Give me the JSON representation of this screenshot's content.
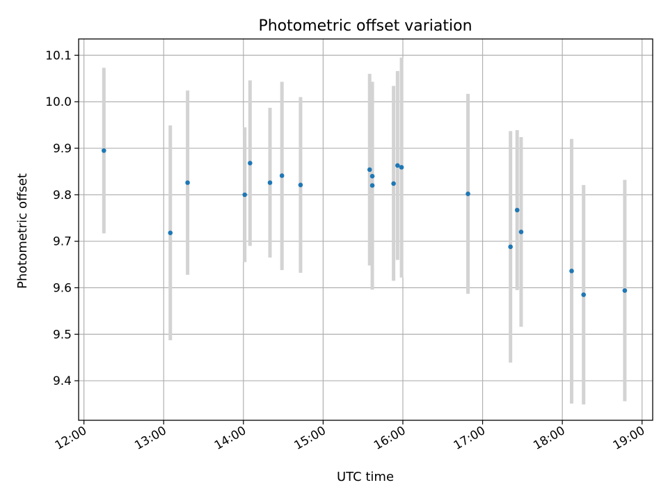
{
  "chart_data": {
    "type": "scatter",
    "title": "Photometric offset variation",
    "xlabel": "UTC time",
    "ylabel": "Photometric offset",
    "x_axis_type": "time",
    "xlim": [
      "11:56",
      "19:08"
    ],
    "ylim": [
      9.315,
      10.135
    ],
    "x_ticks": [
      "12:00",
      "13:00",
      "14:00",
      "15:00",
      "16:00",
      "17:00",
      "18:00",
      "19:00"
    ],
    "y_ticks": [
      9.4,
      9.5,
      9.6,
      9.7,
      9.8,
      9.9,
      10.0,
      10.1
    ],
    "y_tick_labels": [
      "9.4",
      "9.5",
      "9.6",
      "9.7",
      "9.8",
      "9.9",
      "10.0",
      "10.1"
    ],
    "grid": true,
    "point_color": "#1f77b4",
    "errorbar_color": "#d3d3d3",
    "points": [
      {
        "time": "12:15",
        "y": 9.895,
        "y_low": 9.717,
        "y_high": 10.073
      },
      {
        "time": "13:05",
        "y": 9.718,
        "y_low": 9.487,
        "y_high": 9.949
      },
      {
        "time": "13:18",
        "y": 9.826,
        "y_low": 9.628,
        "y_high": 10.024
      },
      {
        "time": "14:01",
        "y": 9.8,
        "y_low": 9.655,
        "y_high": 9.945
      },
      {
        "time": "14:05",
        "y": 9.868,
        "y_low": 9.69,
        "y_high": 10.046
      },
      {
        "time": "14:20",
        "y": 9.826,
        "y_low": 9.665,
        "y_high": 9.987
      },
      {
        "time": "14:29",
        "y": 9.841,
        "y_low": 9.638,
        "y_high": 10.043
      },
      {
        "time": "14:43",
        "y": 9.821,
        "y_low": 9.632,
        "y_high": 10.01
      },
      {
        "time": "15:35",
        "y": 9.854,
        "y_low": 9.648,
        "y_high": 10.06
      },
      {
        "time": "15:37",
        "y": 9.84,
        "y_low": 9.652,
        "y_high": 10.043
      },
      {
        "time": "15:37",
        "y": 9.82,
        "y_low": 9.596,
        "y_high": 10.034
      },
      {
        "time": "15:53",
        "y": 9.824,
        "y_low": 9.615,
        "y_high": 10.034
      },
      {
        "time": "15:56",
        "y": 9.863,
        "y_low": 9.66,
        "y_high": 10.066
      },
      {
        "time": "15:59",
        "y": 9.859,
        "y_low": 9.622,
        "y_high": 10.095
      },
      {
        "time": "16:49",
        "y": 9.802,
        "y_low": 9.587,
        "y_high": 10.017
      },
      {
        "time": "17:21",
        "y": 9.688,
        "y_low": 9.439,
        "y_high": 9.937
      },
      {
        "time": "17:26",
        "y": 9.767,
        "y_low": 9.595,
        "y_high": 9.939
      },
      {
        "time": "17:29",
        "y": 9.72,
        "y_low": 9.516,
        "y_high": 9.924
      },
      {
        "time": "18:07",
        "y": 9.636,
        "y_low": 9.351,
        "y_high": 9.92
      },
      {
        "time": "18:16",
        "y": 9.585,
        "y_low": 9.349,
        "y_high": 9.821
      },
      {
        "time": "18:47",
        "y": 9.594,
        "y_low": 9.356,
        "y_high": 9.832
      }
    ]
  }
}
